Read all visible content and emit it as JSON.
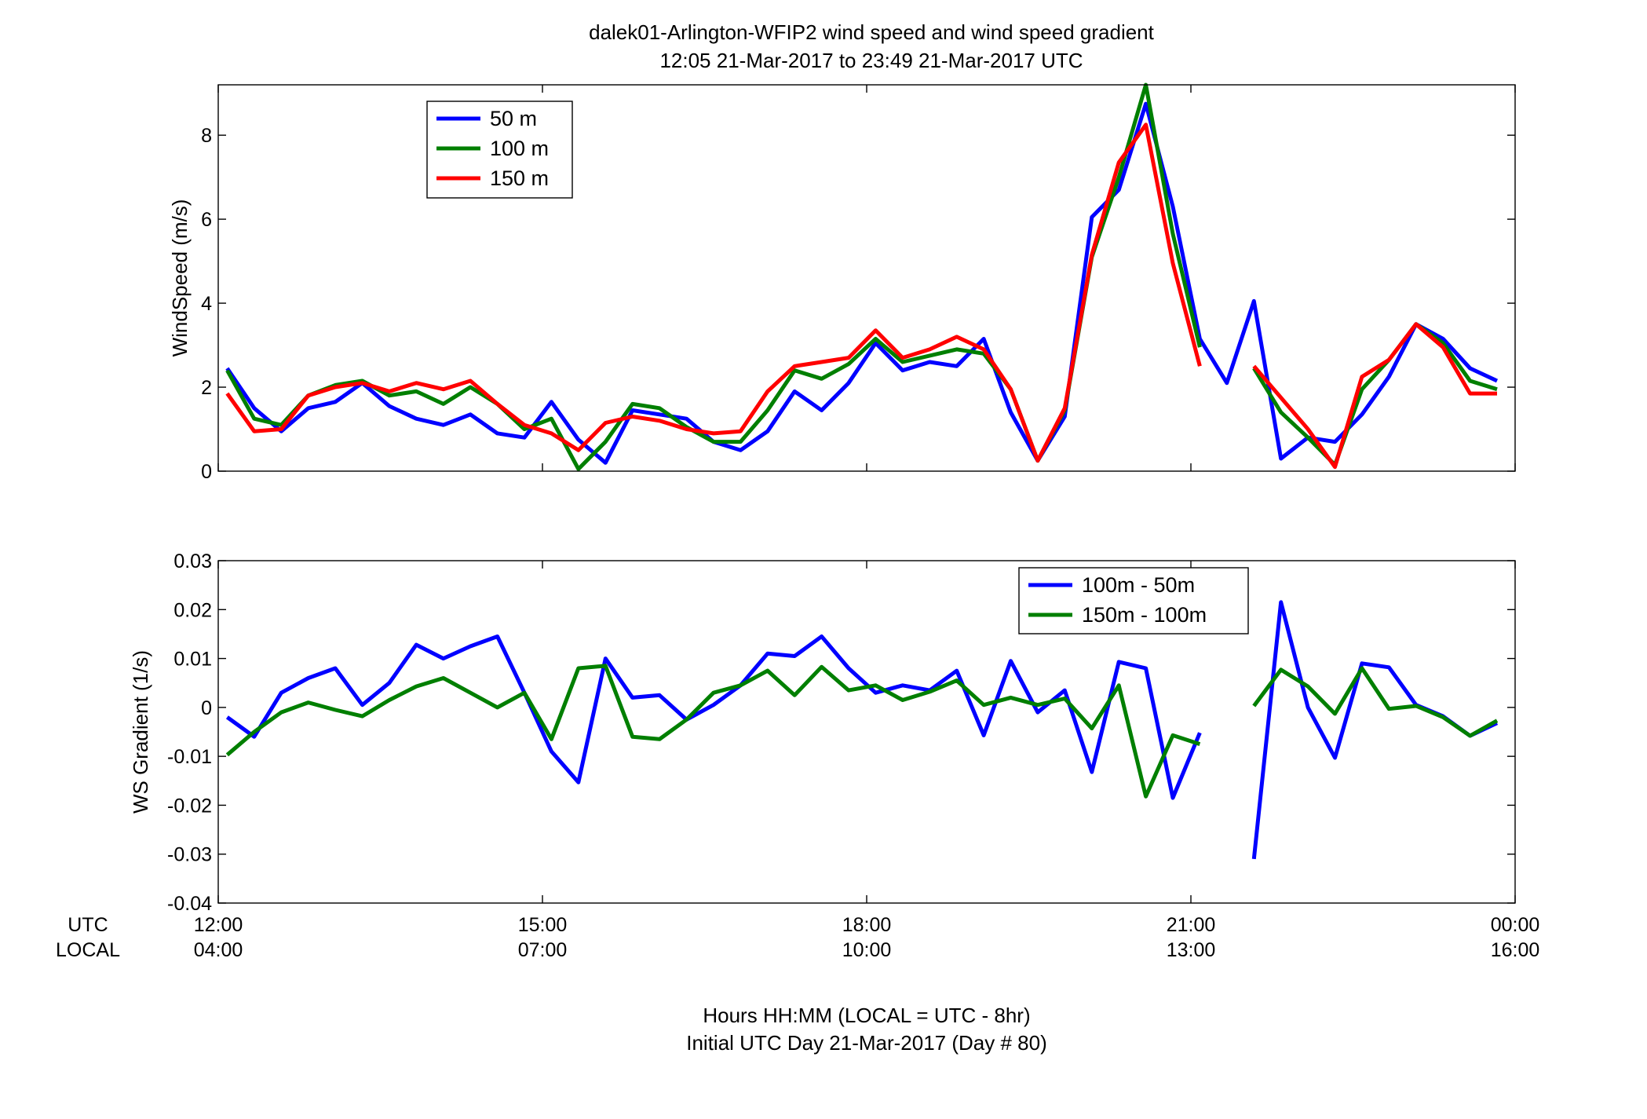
{
  "title_line1": "dalek01-Arlington-WFIP2  wind speed and wind speed gradient",
  "title_line2": "12:05 21-Mar-2017 to 23:49 21-Mar-2017  UTC",
  "x_axis": {
    "utc_row_label": "UTC",
    "local_row_label": "LOCAL",
    "utc_ticks": [
      "12:00",
      "15:00",
      "18:00",
      "21:00",
      "00:00"
    ],
    "local_ticks": [
      "04:00",
      "07:00",
      "10:00",
      "13:00",
      "16:00"
    ],
    "xlabel_line1": "Hours HH:MM  (LOCAL = UTC - 8hr)",
    "xlabel_line2": "Initial UTC Day 21-Mar-2017 (Day # 80)"
  },
  "chart_data": [
    {
      "type": "line",
      "ylabel": "WindSpeed (m/s)",
      "xlim": [
        12.0,
        24.0
      ],
      "ylim": [
        0,
        9.2
      ],
      "yticks": [
        0,
        2,
        4,
        6,
        8
      ],
      "ytick_labels": [
        "0",
        "2",
        "4",
        "6",
        "8"
      ],
      "grid": false,
      "legend_position": "top-left",
      "x": [
        12.083,
        12.333,
        12.583,
        12.833,
        13.083,
        13.333,
        13.583,
        13.833,
        14.083,
        14.333,
        14.583,
        14.833,
        15.083,
        15.333,
        15.583,
        15.833,
        16.083,
        16.333,
        16.583,
        16.833,
        17.083,
        17.333,
        17.583,
        17.833,
        18.083,
        18.333,
        18.583,
        18.833,
        19.083,
        19.333,
        19.583,
        19.833,
        20.083,
        20.333,
        20.583,
        20.833,
        21.083,
        21.333,
        21.583,
        21.833,
        22.083,
        22.333,
        22.583,
        22.833,
        23.083,
        23.333,
        23.583,
        23.833
      ],
      "series": [
        {
          "name": "50 m",
          "color": "#0000ff",
          "values": [
            2.45,
            1.5,
            0.95,
            1.5,
            1.65,
            2.1,
            1.55,
            1.25,
            1.1,
            1.35,
            0.9,
            0.8,
            1.65,
            0.75,
            0.2,
            1.45,
            1.35,
            1.25,
            0.7,
            0.5,
            0.95,
            1.9,
            1.45,
            2.1,
            3.05,
            2.4,
            2.6,
            2.5,
            3.15,
            1.4,
            0.25,
            1.3,
            6.05,
            6.7,
            8.75,
            6.3,
            3.15,
            2.1,
            4.05,
            0.3,
            0.8,
            0.7,
            1.35,
            2.25,
            3.5,
            3.15,
            2.45,
            2.15
          ]
        },
        {
          "name": "100 m",
          "color": "#007f00",
          "values": [
            2.4,
            1.25,
            1.1,
            1.8,
            2.05,
            2.15,
            1.8,
            1.9,
            1.6,
            2.0,
            1.6,
            1.0,
            1.25,
            0.05,
            0.7,
            1.6,
            1.5,
            1.05,
            0.7,
            0.7,
            1.45,
            2.4,
            2.2,
            2.55,
            3.15,
            2.6,
            2.75,
            2.9,
            2.8,
            1.95,
            0.25,
            1.45,
            5.1,
            7.0,
            9.2,
            5.65,
            2.95,
            null,
            2.45,
            1.4,
            0.8,
            0.15,
            1.95,
            2.65,
            3.5,
            3.05,
            2.15,
            1.95
          ]
        },
        {
          "name": "150 m",
          "color": "#ff0000",
          "values": [
            1.85,
            0.95,
            1.0,
            1.8,
            2.0,
            2.1,
            1.9,
            2.1,
            1.95,
            2.15,
            1.6,
            1.1,
            0.9,
            0.5,
            1.15,
            1.3,
            1.2,
            1.0,
            0.9,
            0.95,
            1.9,
            2.5,
            2.6,
            2.7,
            3.35,
            2.7,
            2.9,
            3.2,
            2.9,
            1.95,
            0.25,
            1.5,
            5.15,
            7.35,
            8.25,
            4.95,
            2.5,
            null,
            2.5,
            1.75,
            1.0,
            0.1,
            2.25,
            2.65,
            3.5,
            2.95,
            1.85,
            1.85
          ]
        }
      ]
    },
    {
      "type": "line",
      "ylabel": "WS Gradient (1/s)",
      "xlim": [
        12.0,
        24.0
      ],
      "ylim": [
        -0.04,
        0.03
      ],
      "yticks": [
        -0.04,
        -0.03,
        -0.02,
        -0.01,
        0,
        0.01,
        0.02,
        0.03
      ],
      "ytick_labels": [
        "-0.04",
        "-0.03",
        "-0.02",
        "-0.01",
        "0",
        "0.01",
        "0.02",
        "0.03"
      ],
      "grid": false,
      "legend_position": "top-right",
      "x": [
        12.083,
        12.333,
        12.583,
        12.833,
        13.083,
        13.333,
        13.583,
        13.833,
        14.083,
        14.333,
        14.583,
        14.833,
        15.083,
        15.333,
        15.583,
        15.833,
        16.083,
        16.333,
        16.583,
        16.833,
        17.083,
        17.333,
        17.583,
        17.833,
        18.083,
        18.333,
        18.583,
        18.833,
        19.083,
        19.333,
        19.583,
        19.833,
        20.083,
        20.333,
        20.583,
        20.833,
        21.083,
        21.333,
        21.583,
        21.833,
        22.083,
        22.333,
        22.583,
        22.833,
        23.083,
        23.333,
        23.583,
        23.833
      ],
      "series": [
        {
          "name": "100m - 50m",
          "color": "#0000ff",
          "values": [
            -0.002,
            -0.006,
            0.003,
            0.006,
            0.008,
            0.0005,
            0.005,
            0.0128,
            0.01,
            0.0125,
            0.0145,
            0.003,
            -0.009,
            -0.0153,
            0.01,
            0.002,
            0.0025,
            -0.0025,
            0.0005,
            0.0045,
            0.011,
            0.0105,
            0.0145,
            0.008,
            0.003,
            0.0045,
            0.0035,
            0.0075,
            -0.0057,
            0.0095,
            -0.001,
            0.0035,
            -0.0132,
            0.0093,
            0.008,
            -0.0185,
            -0.0052,
            null,
            -0.031,
            0.0215,
            0.0,
            -0.0103,
            0.009,
            0.0082,
            0.0005,
            -0.0018,
            -0.0058,
            -0.0032
          ]
        },
        {
          "name": "150m - 100m",
          "color": "#007f00",
          "values": [
            -0.0097,
            -0.005,
            -0.001,
            0.001,
            -0.0005,
            -0.0018,
            0.0015,
            0.0043,
            0.006,
            0.003,
            0.0,
            0.003,
            -0.0065,
            0.008,
            0.0085,
            -0.006,
            -0.0065,
            -0.0025,
            0.003,
            0.0045,
            0.0075,
            0.0025,
            0.0083,
            0.0035,
            0.0045,
            0.0015,
            0.0032,
            0.0055,
            0.0005,
            0.002,
            0.0005,
            0.0018,
            -0.0043,
            0.0045,
            -0.0182,
            -0.0057,
            -0.0075,
            null,
            0.0003,
            0.0077,
            0.0043,
            -0.0013,
            0.008,
            -0.0003,
            0.0003,
            -0.002,
            -0.0058,
            -0.0027
          ]
        }
      ]
    }
  ]
}
